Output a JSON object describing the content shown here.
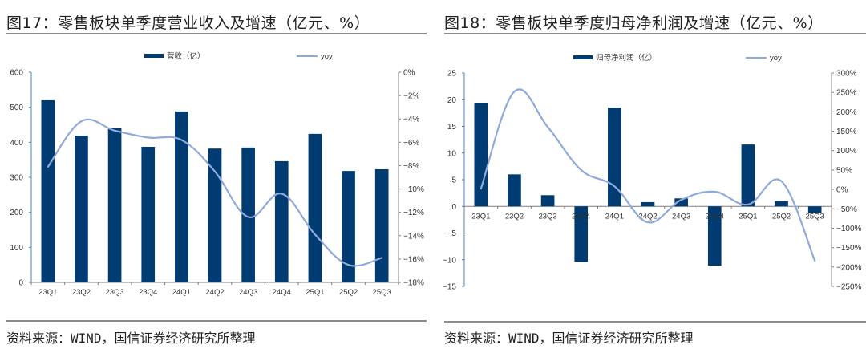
{
  "colors": {
    "bar": "#003C71",
    "line": "#8EAADB",
    "axis": "#4F81BD",
    "axis_right": "#7F7F7F"
  },
  "chart_data": [
    {
      "type": "bar",
      "title": "图17：零售板块单季度营业收入及增速（亿元、%）",
      "source": "资料来源：WIND，国信证券经济研究所整理",
      "categories": [
        "23Q1",
        "23Q2",
        "23Q3",
        "23Q4",
        "24Q1",
        "24Q2",
        "24Q3",
        "24Q4",
        "25Q1",
        "25Q2",
        "25Q3"
      ],
      "series": [
        {
          "name": "营收（亿）",
          "type": "bar",
          "axis": "left",
          "values": [
            520,
            419,
            440,
            387,
            488,
            382,
            385,
            346,
            424,
            318,
            323
          ]
        },
        {
          "name": "yoy",
          "type": "line",
          "axis": "right",
          "unit": "%",
          "values": [
            -8.1,
            -4.2,
            -5.0,
            -5.6,
            -5.8,
            -8.5,
            -12.4,
            -10.4,
            -13.9,
            -16.5,
            -15.9
          ]
        }
      ],
      "ylim": [
        0,
        600
      ],
      "yticks": [
        "0",
        "100",
        "200",
        "300",
        "400",
        "500",
        "600"
      ],
      "yticks_values": [
        0,
        100,
        200,
        300,
        400,
        500,
        600
      ],
      "y2lim": [
        -18,
        0
      ],
      "y2ticks": [
        "-18%",
        "-16%",
        "-14%",
        "-12%",
        "-10%",
        "-8%",
        "-6%",
        "-4%",
        "-2%",
        "0%"
      ],
      "y2ticks_values": [
        -18,
        -16,
        -14,
        -12,
        -10,
        -8,
        -6,
        -4,
        -2,
        0
      ],
      "xlabel": "",
      "ylabel": "",
      "legend": "top-center",
      "grid": false
    },
    {
      "type": "bar",
      "title": "图18：零售板块单季度归母净利润及增速（亿元、%）",
      "source": "资料来源：WIND，国信证券经济研究所整理",
      "categories": [
        "23Q1",
        "23Q2",
        "23Q3",
        "23Q4",
        "24Q1",
        "24Q2",
        "24Q3",
        "24Q4",
        "25Q1",
        "25Q2",
        "25Q3"
      ],
      "series": [
        {
          "name": "归母净利润（亿）",
          "type": "bar",
          "axis": "left",
          "values": [
            19.4,
            6.0,
            2.1,
            -10.4,
            18.5,
            0.8,
            1.5,
            -11.1,
            11.6,
            1.0,
            -1.2
          ]
        },
        {
          "name": "yoy",
          "type": "line",
          "axis": "right",
          "unit": "%",
          "values": [
            2,
            252,
            161,
            50,
            8,
            -85,
            -27,
            -6,
            -39,
            21,
            -184
          ]
        }
      ],
      "ylim": [
        -15,
        25
      ],
      "yticks": [
        "-15",
        "-10",
        "-5",
        "0",
        "5",
        "10",
        "15",
        "20",
        "25"
      ],
      "yticks_values": [
        -15,
        -10,
        -5,
        0,
        5,
        10,
        15,
        20,
        25
      ],
      "y2lim": [
        -250,
        300
      ],
      "y2ticks": [
        "-250%",
        "-200%",
        "-150%",
        "-100%",
        "-50%",
        "0%",
        "50%",
        "100%",
        "150%",
        "200%",
        "250%",
        "300%"
      ],
      "y2ticks_values": [
        -250,
        -200,
        -150,
        -100,
        -50,
        0,
        50,
        100,
        150,
        200,
        250,
        300
      ],
      "xlabel": "",
      "ylabel": "",
      "legend": "top-center",
      "grid": false
    }
  ]
}
